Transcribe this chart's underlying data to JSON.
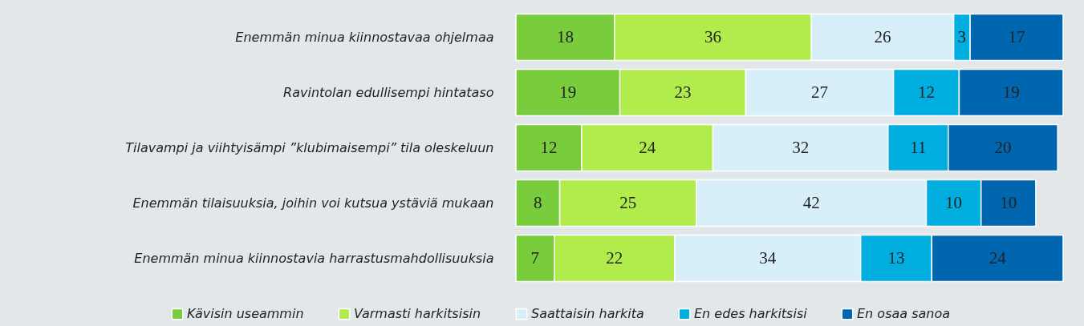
{
  "chart_data": {
    "type": "bar",
    "orientation": "horizontal",
    "stacked": true,
    "data_labels": true,
    "legend": "bottom",
    "grid": false,
    "categories": [
      "Enemmän minua kiinnostavaa ohjelmaa",
      "Ravintolan edullisempi hintataso",
      "Tilavampi ja viihtyisämpi ”klubimaisempi” tila oleskeluun",
      "Enemmän tilaisuuksia, joihin voi kutsua ystäviä mukaan",
      "Enemmän minua kiinnostavia harrastusmahdollisuuksia"
    ],
    "series": [
      {
        "name": "Kävisin useammin",
        "color": "#79cc3c",
        "values": [
          18,
          19,
          12,
          8,
          7
        ]
      },
      {
        "name": "Varmasti harkitsisin",
        "color": "#b2ec4c",
        "values": [
          36,
          23,
          24,
          25,
          22
        ]
      },
      {
        "name": "Saattaisin harkita",
        "color": "#d7eff9",
        "values": [
          26,
          27,
          32,
          42,
          34
        ]
      },
      {
        "name": "En edes harkitsisi",
        "color": "#00afe0",
        "values": [
          3,
          12,
          11,
          10,
          13
        ]
      },
      {
        "name": "En osaa sanoa",
        "color": "#0066b0",
        "values": [
          17,
          19,
          20,
          10,
          24
        ]
      }
    ]
  }
}
